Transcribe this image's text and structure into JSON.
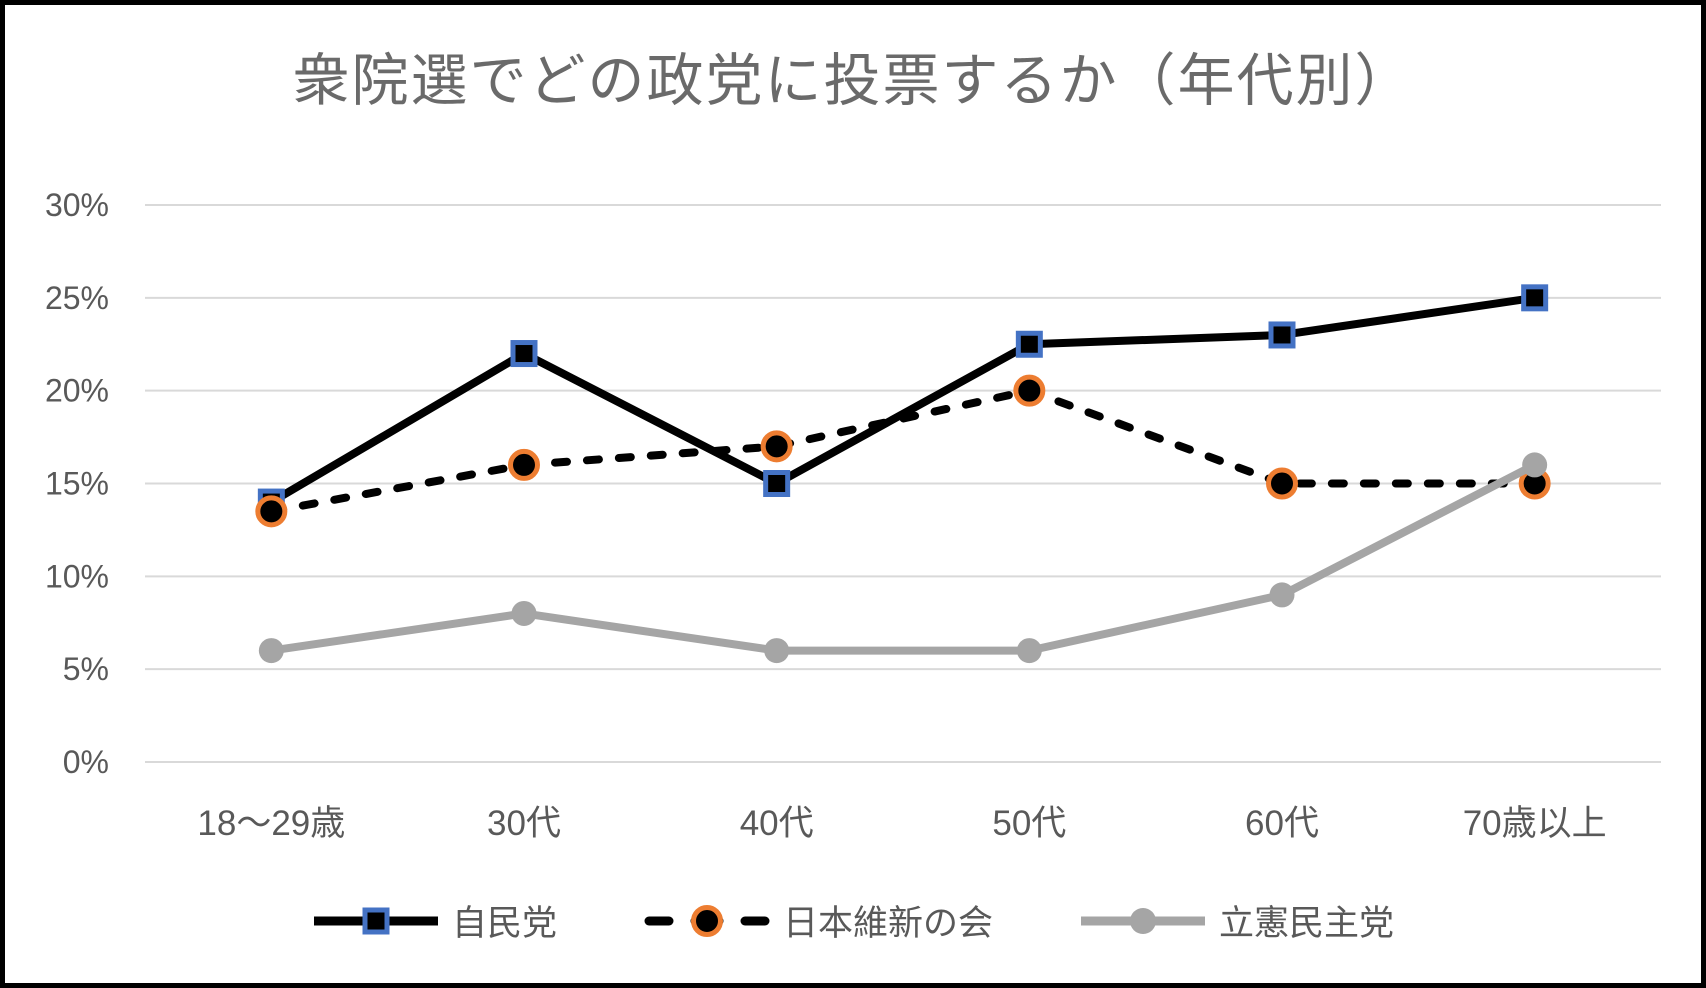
{
  "chart_data": {
    "type": "line",
    "title": "衆院選でどの政党に投票するか（年代別）",
    "categories": [
      "18〜29歳",
      "30代",
      "40代",
      "50代",
      "60代",
      "70歳以上"
    ],
    "series": [
      {
        "name": "自民党",
        "values": [
          14,
          22,
          15,
          22.5,
          23,
          25
        ],
        "line_style": "solid",
        "line_color": "#000000",
        "marker": "square",
        "marker_fill": "#000000",
        "marker_border": "#4472c4"
      },
      {
        "name": "日本維新の会",
        "values": [
          13.5,
          16,
          17,
          20,
          15,
          15
        ],
        "line_style": "dashed",
        "line_color": "#000000",
        "marker": "circle",
        "marker_fill": "#000000",
        "marker_border": "#ed7d31"
      },
      {
        "name": "立憲民主党",
        "values": [
          6,
          8,
          6,
          6,
          9,
          16
        ],
        "line_style": "solid",
        "line_color": "#a5a5a5",
        "marker": "circle",
        "marker_fill": "#a5a5a5",
        "marker_border": "#a5a5a5"
      }
    ],
    "y_axis": {
      "min": 0,
      "max": 30,
      "step": 5,
      "tick_suffix": "%",
      "tick_labels": [
        "0%",
        "5%",
        "10%",
        "15%",
        "20%",
        "25%",
        "30%"
      ]
    },
    "x_axis": {
      "label": ""
    },
    "grid": true,
    "legend_position": "bottom",
    "colors": {
      "background": "#ffffff",
      "frame_border": "#000000",
      "gridline": "#d9d9d9",
      "axis_text": "#595959",
      "title_text": "#6a6a6a",
      "ldp_blue_marker_border": "#4472c4",
      "ishin_orange_marker_border": "#ed7d31",
      "cdp_gray": "#a5a5a5"
    }
  }
}
